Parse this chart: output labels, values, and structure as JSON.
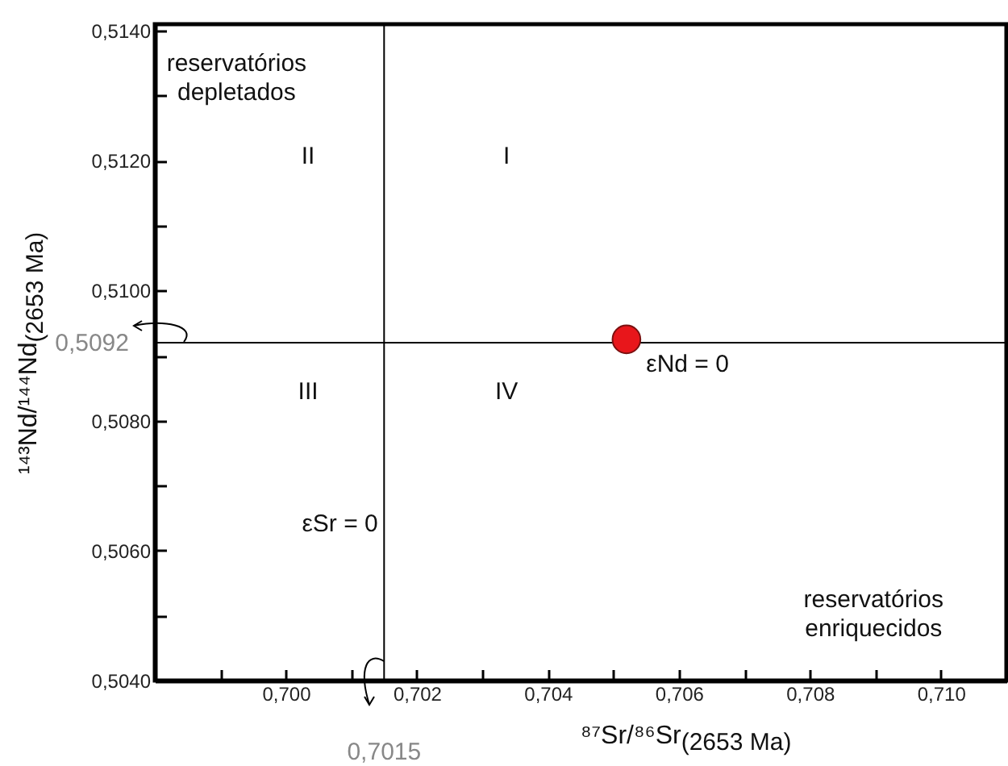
{
  "chart_data": {
    "type": "scatter",
    "x": [
      0.7052
    ],
    "values": [
      0.50925
    ],
    "color": "#e8161b",
    "marker": "circle",
    "xlabel": "⁸⁷Sr/⁸⁶Sr$_{(2653 Ma)}$",
    "ylabel": "¹⁴³Nd/¹⁴⁴Nd$_{(2653 Ma)}$",
    "xlim": [
      0.698,
      0.711
    ],
    "ylim": [
      0.504,
      0.5141
    ],
    "xticks": [
      {
        "value": 0.699,
        "label": null
      },
      {
        "value": 0.7,
        "label": "0,700"
      },
      {
        "value": 0.701,
        "label": null
      },
      {
        "value": 0.702,
        "label": "0,702"
      },
      {
        "value": 0.703,
        "label": null
      },
      {
        "value": 0.704,
        "label": "0,704"
      },
      {
        "value": 0.705,
        "label": null
      },
      {
        "value": 0.706,
        "label": "0,706"
      },
      {
        "value": 0.707,
        "label": null
      },
      {
        "value": 0.708,
        "label": "0,708"
      },
      {
        "value": 0.709,
        "label": null
      },
      {
        "value": 0.71,
        "label": "0,710"
      }
    ],
    "yticks": [
      {
        "value": 0.504,
        "label": "0,5040"
      },
      {
        "value": 0.505,
        "label": null
      },
      {
        "value": 0.506,
        "label": "0,5060"
      },
      {
        "value": 0.507,
        "label": null
      },
      {
        "value": 0.508,
        "label": "0,5080"
      },
      {
        "value": 0.509,
        "label": null
      },
      {
        "value": 0.51,
        "label": "0,5100"
      },
      {
        "value": 0.511,
        "label": null
      },
      {
        "value": 0.512,
        "label": "0,5120"
      },
      {
        "value": 0.513,
        "label": null
      },
      {
        "value": 0.514,
        "label": "0,5140"
      }
    ],
    "ref_lines": [
      {
        "axis": "x",
        "value": 0.7015,
        "label": "0,7015",
        "color": "#000000"
      },
      {
        "axis": "y",
        "value": 0.5092,
        "label": "0,5092",
        "color": "#000000"
      }
    ],
    "annotations": [
      "reservatórios\ndepletados",
      "I",
      "II",
      "III",
      "IV",
      "reservatórios\nenriquecidos",
      "εNd = 0",
      "εSr = 0"
    ],
    "grid": false
  }
}
